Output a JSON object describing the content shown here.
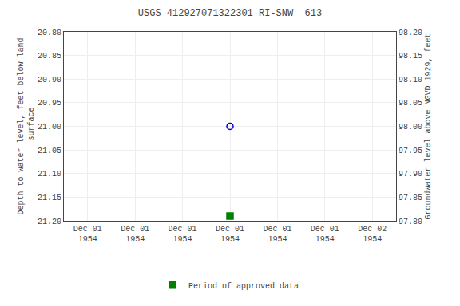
{
  "chart_data": {
    "type": "scatter",
    "title": "USGS 412927071322301 RI-SNW  613",
    "ylabel": "Depth to water level, feet below land\n surface",
    "y2label": "Groundwater level above NGVD 1929, feet",
    "categories": [
      "Dec 01\n1954",
      "Dec 01\n1954",
      "Dec 01\n1954",
      "Dec 01\n1954",
      "Dec 01\n1954",
      "Dec 01\n1954",
      "Dec 02\n1954"
    ],
    "series": [
      {
        "color": "#0000cc",
        "marker": "circle-open",
        "values": [
          null,
          null,
          null,
          21.0,
          null,
          null,
          null
        ]
      },
      {
        "name": "Period of approved data",
        "color": "#008000",
        "marker": "square",
        "values": [
          null,
          null,
          null,
          21.19,
          null,
          null,
          null
        ]
      }
    ],
    "ylim": [
      21.2,
      20.8
    ],
    "yticks": [
      {
        "value": 20.8,
        "label": "20.80"
      },
      20.85,
      {
        "value": 20.9,
        "label": "20.90"
      },
      20.95,
      {
        "value": 21.0,
        "label": "21.00"
      },
      21.05,
      {
        "value": 21.1,
        "label": "21.10"
      },
      21.15,
      {
        "value": 21.2,
        "label": "21.20"
      }
    ],
    "y2lim": [
      97.8,
      98.2
    ],
    "y2ticks": [
      {
        "value": 97.8,
        "label": "97.80"
      },
      97.85,
      {
        "value": 97.9,
        "label": "97.90"
      },
      97.95,
      {
        "value": 98.0,
        "label": "98.00"
      },
      98.05,
      {
        "value": 98.1,
        "label": "98.10"
      },
      98.15,
      {
        "value": 98.2,
        "label": "98.20"
      }
    ],
    "grid": true,
    "legend": "bottom"
  }
}
